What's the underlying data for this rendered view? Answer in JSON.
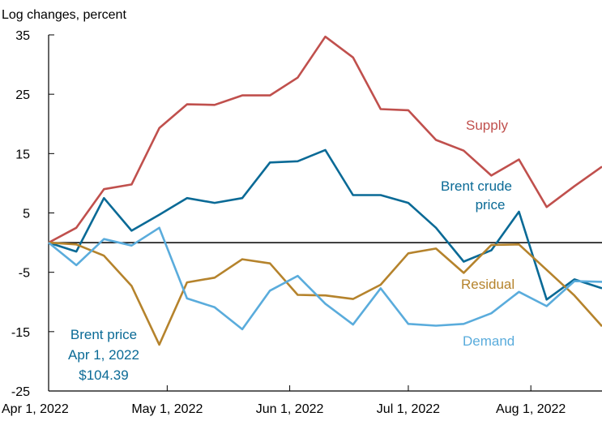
{
  "chart_data": {
    "type": "line",
    "ylabel": "Log changes, percent",
    "ylim": [
      -25,
      35
    ],
    "yticks": [
      35,
      25,
      15,
      5,
      -5,
      -15,
      -25
    ],
    "xlim": [
      "2022-04-01",
      "2022-08-19"
    ],
    "xticks": [
      {
        "date": "2022-04-01",
        "label": "Apr 1, 2022"
      },
      {
        "date": "2022-05-01",
        "label": "May 1, 2022"
      },
      {
        "date": "2022-06-01",
        "label": "Jun 1, 2022"
      },
      {
        "date": "2022-07-01",
        "label": "Jul 1, 2022"
      },
      {
        "date": "2022-08-01",
        "label": "Aug 1, 2022"
      }
    ],
    "zero_line": true,
    "grid": false,
    "x": [
      "2022-04-01",
      "2022-04-08",
      "2022-04-15",
      "2022-04-22",
      "2022-04-29",
      "2022-05-06",
      "2022-05-13",
      "2022-05-20",
      "2022-05-27",
      "2022-06-03",
      "2022-06-10",
      "2022-06-17",
      "2022-06-24",
      "2022-07-01",
      "2022-07-08",
      "2022-07-15",
      "2022-07-22",
      "2022-07-29",
      "2022-08-05",
      "2022-08-12",
      "2022-08-19"
    ],
    "series": [
      {
        "name": "Supply",
        "color": "#c0504d",
        "values": [
          0,
          2.5,
          9,
          9.8,
          19.3,
          23.3,
          23.2,
          24.8,
          24.8,
          27.8,
          34.7,
          31.2,
          22.5,
          22.3,
          17.3,
          15.5,
          11.3,
          14,
          6,
          9.5,
          12.8
        ]
      },
      {
        "name": "Brent crude price",
        "color": "#0a6a96",
        "values": [
          0,
          -1.5,
          7.5,
          2,
          4.7,
          7.5,
          6.7,
          7.5,
          13.5,
          13.7,
          15.6,
          8,
          8,
          6.7,
          2.5,
          -3.2,
          -1.3,
          5.2,
          -9.6,
          -6.2,
          -7.7
        ]
      },
      {
        "name": "Residual",
        "color": "#b5832c",
        "values": [
          0,
          -0.3,
          -2.2,
          -7.3,
          -17.2,
          -6.7,
          -5.9,
          -2.8,
          -3.5,
          -8.8,
          -8.9,
          -9.5,
          -7.1,
          -1.8,
          -1,
          -5.1,
          -0.4,
          -0.3,
          -4.6,
          -8.9,
          -14.1
        ]
      },
      {
        "name": "Demand",
        "color": "#5aacdc",
        "values": [
          0,
          -3.8,
          0.6,
          -0.5,
          2.5,
          -9.4,
          -10.9,
          -14.6,
          -8.1,
          -5.6,
          -10.3,
          -13.8,
          -7.7,
          -13.7,
          -14,
          -13.7,
          -11.9,
          -8.3,
          -10.7,
          -6.5,
          -6.6
        ]
      }
    ],
    "annotations": {
      "supply": "Supply",
      "brent_line1": "Brent crude",
      "brent_line2": "price",
      "residual": "Residual",
      "demand": "Demand",
      "note_line1": "Brent price",
      "note_line2": "Apr 1, 2022",
      "note_line3": "$104.39"
    }
  }
}
